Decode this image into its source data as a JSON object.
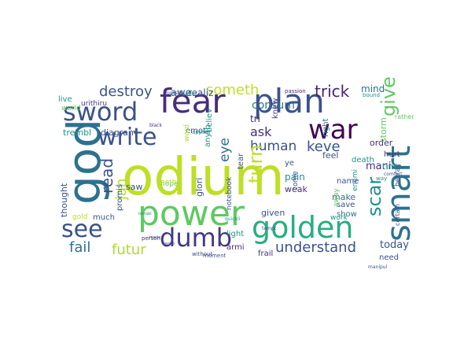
{
  "words": [
    {
      "text": "odium",
      "color": "#bddf26"
    },
    {
      "text": "fear",
      "color": "#472d7b"
    },
    {
      "text": "plan",
      "color": "#3b528b"
    },
    {
      "text": "god",
      "color": "#2c728e"
    },
    {
      "text": "power",
      "color": "#5ec962"
    },
    {
      "text": "smart",
      "color": "#2c728e"
    },
    {
      "text": "golden",
      "color": "#28ae80"
    },
    {
      "text": "sword",
      "color": "#3b528b"
    },
    {
      "text": "war",
      "color": "#440154"
    },
    {
      "text": "write",
      "color": "#3b528b"
    },
    {
      "text": "see",
      "color": "#3b528b"
    },
    {
      "text": "dumb",
      "color": "#443983"
    },
    {
      "text": "destroy",
      "color": "#3b528b"
    },
    {
      "text": "trick",
      "color": "#482576"
    },
    {
      "text": "someth",
      "color": "#c2df23"
    },
    {
      "text": "consum",
      "color": "#2c728e"
    },
    {
      "text": "keve",
      "color": "#3b528b"
    },
    {
      "text": "human",
      "color": "#3b528b"
    },
    {
      "text": "ask",
      "color": "#472d7b"
    },
    {
      "text": "turn",
      "color": "#c2df23"
    },
    {
      "text": "eye",
      "color": "#2c728e"
    },
    {
      "text": "read",
      "color": "#3b528b"
    },
    {
      "text": "jah",
      "color": "#addc30"
    },
    {
      "text": "fail",
      "color": "#2c728e"
    },
    {
      "text": "futur",
      "color": "#addc30"
    },
    {
      "text": "understand",
      "color": "#3b528b"
    },
    {
      "text": "scar",
      "color": "#21918c"
    },
    {
      "text": "give",
      "color": "#5ec962"
    },
    {
      "text": "awe",
      "color": "#3b528b"
    },
    {
      "text": "realiz",
      "color": "#3b528b"
    },
    {
      "text": "mind",
      "color": "#2c728e"
    },
    {
      "text": "live",
      "color": "#21918c"
    },
    {
      "text": "urithiru",
      "color": "#443983"
    },
    {
      "text": "world",
      "color": "#5ec962"
    },
    {
      "text": "trembl",
      "color": "#21918c"
    },
    {
      "text": "diagram",
      "color": "#3b528b"
    },
    {
      "text": "emot",
      "color": "#3b528b"
    },
    {
      "text": "believ",
      "color": "#21918c"
    },
    {
      "text": "tri",
      "color": "#472d7b"
    },
    {
      "text": "knew",
      "color": "#443983"
    },
    {
      "text": "pain",
      "color": "#21918c"
    },
    {
      "text": "weak",
      "color": "#472d7b"
    },
    {
      "text": "name",
      "color": "#3b528b"
    },
    {
      "text": "make",
      "color": "#2c728e"
    },
    {
      "text": "mani",
      "color": "#472d7b"
    },
    {
      "text": "order",
      "color": "#472d7b"
    },
    {
      "text": "time",
      "color": "#21918c"
    },
    {
      "text": "show",
      "color": "#2c728e"
    },
    {
      "text": "save",
      "color": "#3b528b"
    },
    {
      "text": "work",
      "color": "#21918c"
    },
    {
      "text": "given",
      "color": "#3b528b"
    },
    {
      "text": "away",
      "color": "#5ec962"
    },
    {
      "text": "today",
      "color": "#3b528b"
    },
    {
      "text": "need",
      "color": "#3b528b"
    },
    {
      "text": "frail",
      "color": "#472d7b"
    },
    {
      "text": "light",
      "color": "#21918c"
    },
    {
      "text": "armi",
      "color": "#472d7b"
    },
    {
      "text": "tear",
      "color": "#3b528b"
    },
    {
      "text": "hope",
      "color": "#5ec962"
    },
    {
      "text": "notebook",
      "color": "#3b528b"
    },
    {
      "text": "glori",
      "color": "#3b528b"
    },
    {
      "text": "anyth",
      "color": "#21918c"
    },
    {
      "text": "saw",
      "color": "#3b528b"
    },
    {
      "text": "promis",
      "color": "#3b528b"
    },
    {
      "text": "thought",
      "color": "#3b528b"
    },
    {
      "text": "much",
      "color": "#3b528b"
    },
    {
      "text": "gold",
      "color": "#bddf26"
    },
    {
      "text": "ye",
      "color": "#3b528b"
    },
    {
      "text": "come",
      "color": "#3b528b"
    },
    {
      "text": "enemi",
      "color": "#21918c"
    },
    {
      "text": "betray",
      "color": "#3b528b"
    },
    {
      "text": "certain",
      "color": "#3b528b"
    },
    {
      "text": "death",
      "color": "#21918c"
    },
    {
      "text": "feel",
      "color": "#3b528b"
    },
    {
      "text": "right",
      "color": "#2c728e"
    },
    {
      "text": "hurt",
      "color": "#472d7b"
    },
    {
      "text": "storm",
      "color": "#5ec962"
    },
    {
      "text": "bound",
      "color": "#21918c"
    },
    {
      "text": "passion",
      "color": "#472d7b"
    },
    {
      "text": "possibl",
      "color": "#3b528b"
    },
    {
      "text": "better",
      "color": "#21918c"
    },
    {
      "text": "black",
      "color": "#472d7b"
    },
    {
      "text": "noth",
      "color": "#bddf26"
    },
    {
      "text": "word",
      "color": "#addc30"
    },
    {
      "text": "appear",
      "color": "#21918c"
    },
    {
      "text": "person",
      "color": "#472d7b"
    },
    {
      "text": "without",
      "color": "#3b528b"
    },
    {
      "text": "moment",
      "color": "#3b528b"
    },
    {
      "text": "manipul",
      "color": "#3b528b"
    },
    {
      "text": "comfort",
      "color": "#3b528b"
    },
    {
      "text": "quickli",
      "color": "#21918c"
    },
    {
      "text": "tempt",
      "color": "#3b528b"
    },
    {
      "text": "realm",
      "color": "#3b528b"
    },
    {
      "text": "made",
      "color": "#3b528b"
    },
    {
      "text": "terrabl",
      "color": "#21918c"
    },
    {
      "text": "way",
      "color": "#21918c"
    },
    {
      "text": "rather",
      "color": "#5ec962"
    }
  ]
}
